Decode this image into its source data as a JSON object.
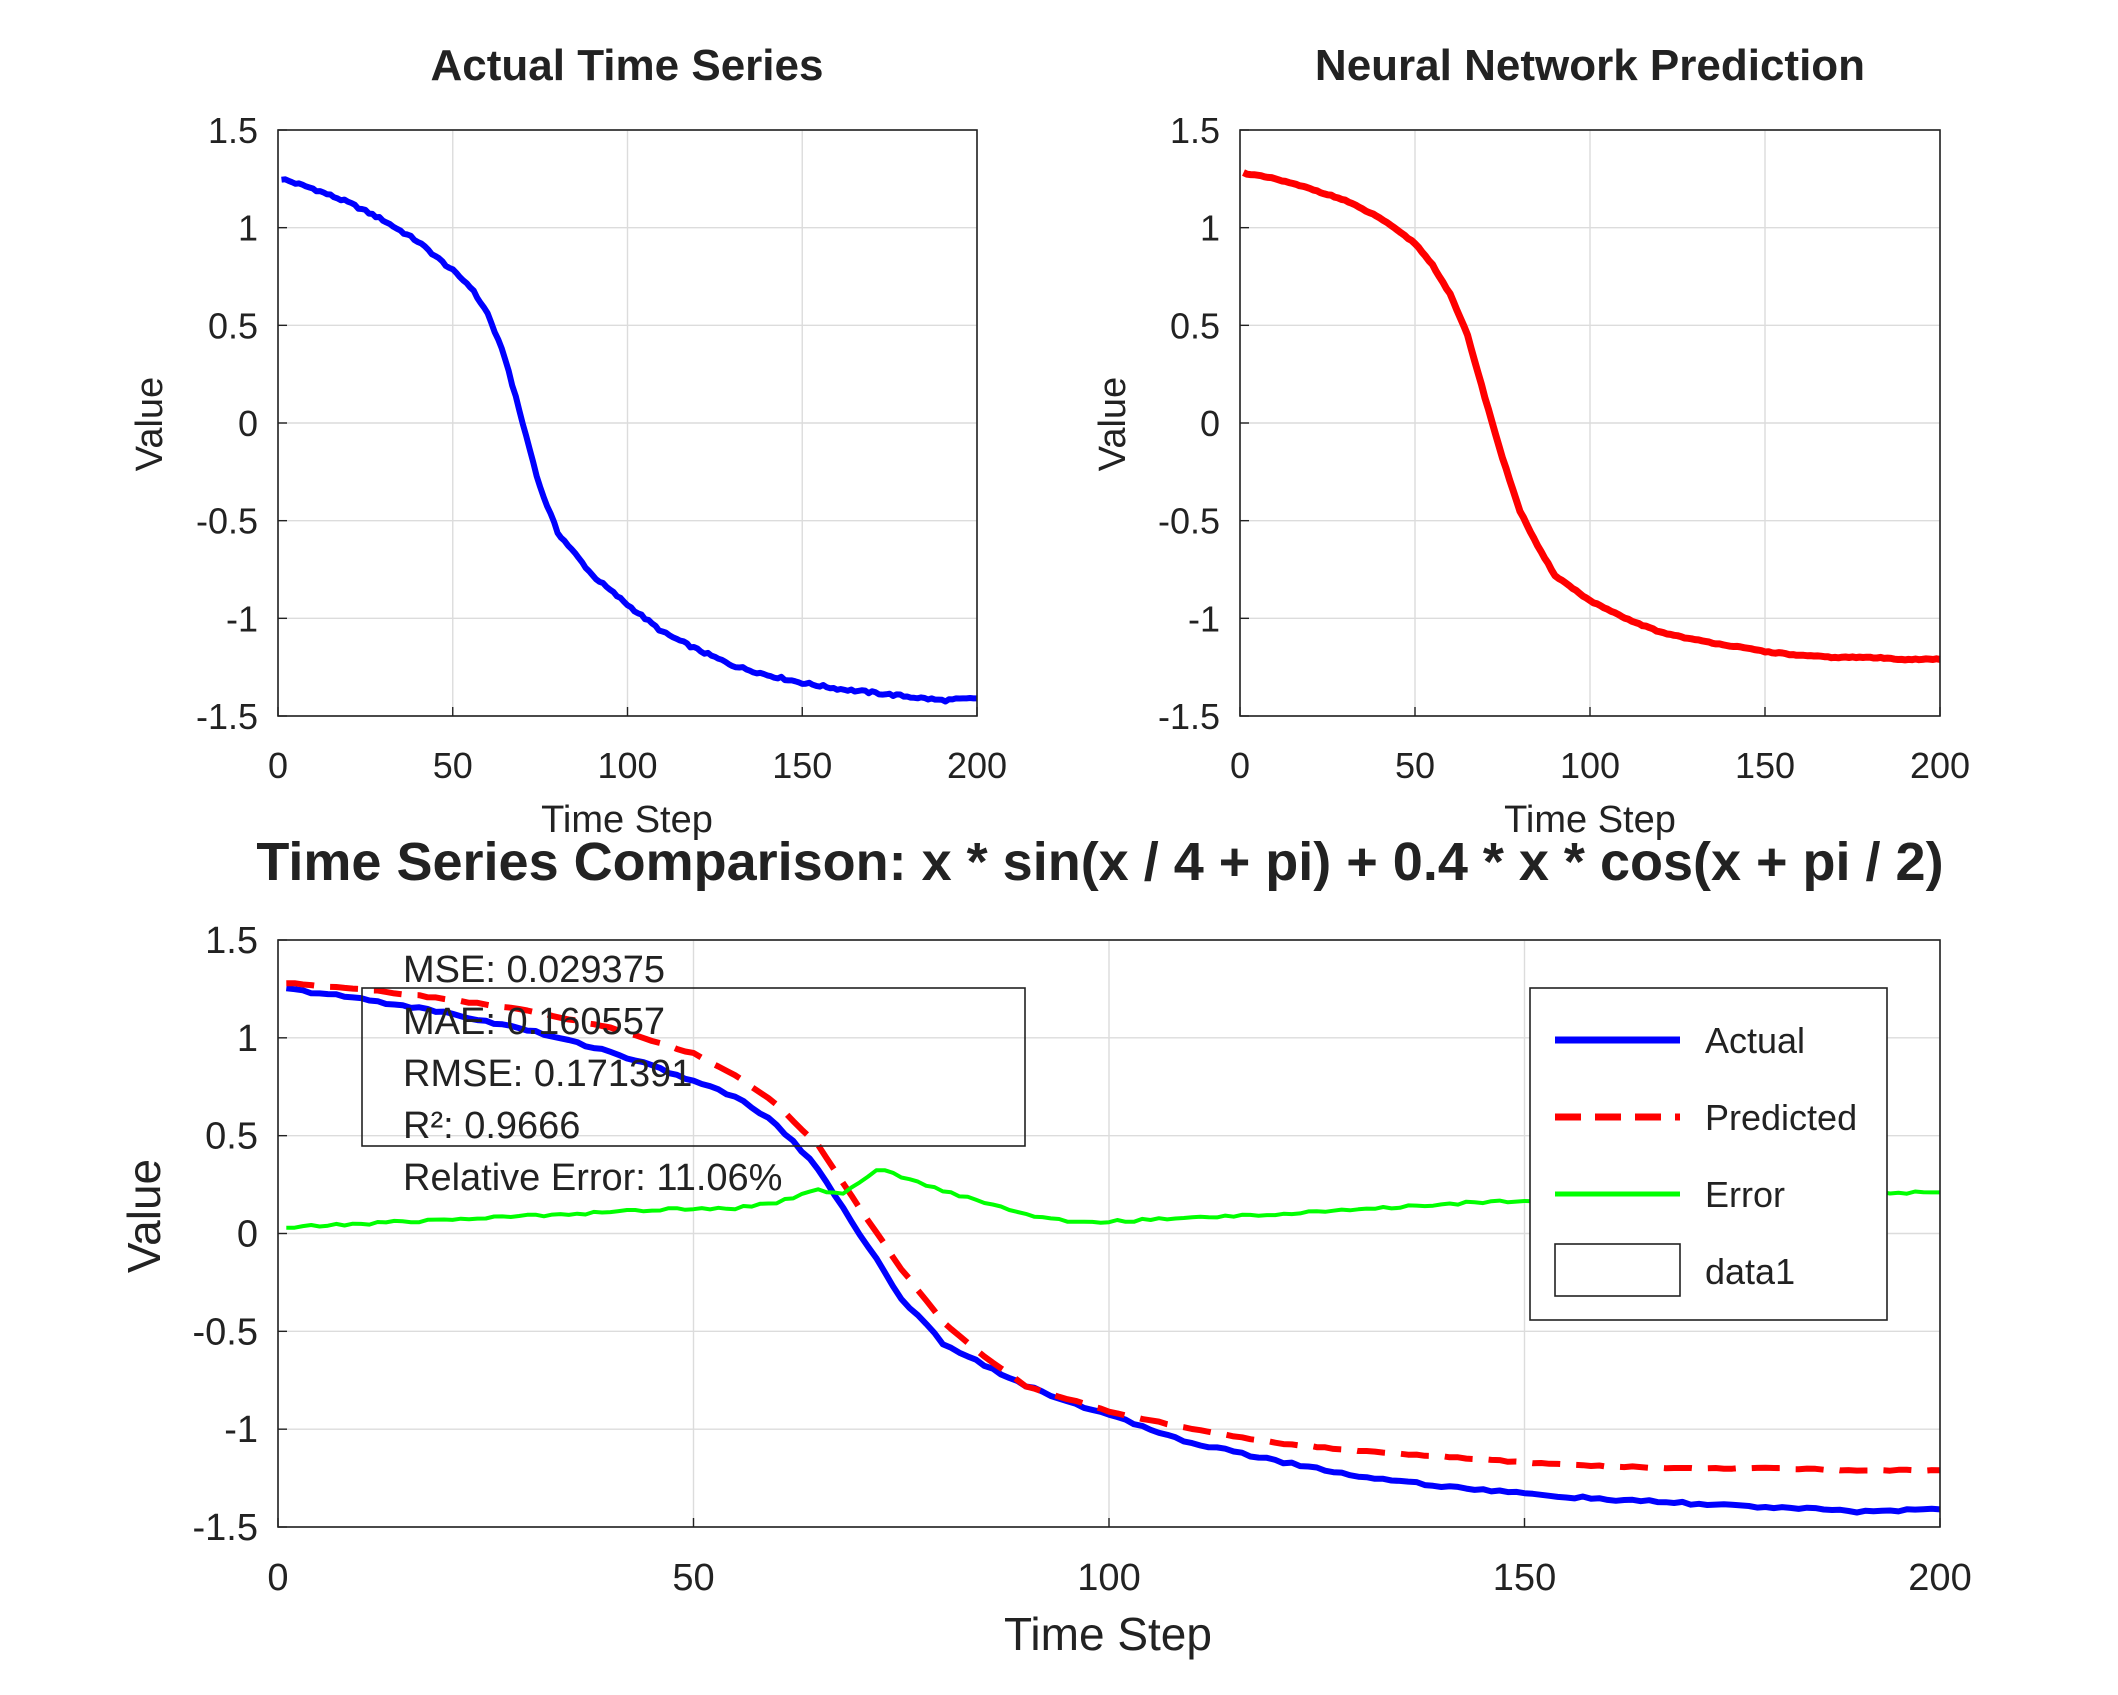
{
  "figure_title": "Time Series Comparison: x * sin(x / 4 + pi) + 0.4 * x * cos(x + pi / 2)",
  "chart_data": [
    {
      "type": "line",
      "title": "Actual Time Series",
      "xlabel": "Time Step",
      "ylabel": "Value",
      "xlim": [
        0,
        200
      ],
      "ylim": [
        -1.5,
        1.5
      ],
      "xticks": [
        0,
        50,
        100,
        150,
        200
      ],
      "yticks": [
        -1.5,
        -1,
        -0.5,
        0,
        0.5,
        1,
        1.5
      ],
      "grid": true,
      "series": [
        {
          "color": "#0000ff",
          "x": [
            1,
            10,
            20,
            30,
            40,
            50,
            55,
            60,
            65,
            70,
            75,
            80,
            90,
            100,
            110,
            120,
            130,
            140,
            150,
            160,
            170,
            180,
            190,
            200
          ],
          "y": [
            1.25,
            1.2,
            1.13,
            1.04,
            0.93,
            0.78,
            0.7,
            0.56,
            0.33,
            0.0,
            -0.33,
            -0.56,
            -0.78,
            -0.93,
            -1.07,
            -1.16,
            -1.24,
            -1.29,
            -1.33,
            -1.36,
            -1.38,
            -1.4,
            -1.42,
            -1.41
          ]
        }
      ]
    },
    {
      "type": "line",
      "title": "Neural Network Prediction",
      "xlabel": "Time Step",
      "ylabel": "Value",
      "xlim": [
        0,
        200
      ],
      "ylim": [
        -1.5,
        1.5
      ],
      "xticks": [
        0,
        50,
        100,
        150,
        200
      ],
      "yticks": [
        -1.5,
        -1,
        -0.5,
        0,
        0.5,
        1,
        1.5
      ],
      "grid": true,
      "series": [
        {
          "color": "#ff0000",
          "x": [
            1,
            10,
            20,
            30,
            40,
            50,
            55,
            60,
            65,
            70,
            75,
            80,
            85,
            90,
            100,
            110,
            120,
            130,
            140,
            150,
            160,
            170,
            180,
            190,
            200
          ],
          "y": [
            1.28,
            1.25,
            1.2,
            1.14,
            1.05,
            0.92,
            0.81,
            0.66,
            0.45,
            0.13,
            -0.18,
            -0.45,
            -0.63,
            -0.78,
            -0.91,
            -1.0,
            -1.07,
            -1.11,
            -1.14,
            -1.17,
            -1.19,
            -1.2,
            -1.2,
            -1.21,
            -1.21
          ]
        }
      ]
    },
    {
      "type": "line",
      "title": "Time Series Comparison: x * sin(x / 4 + pi) + 0.4 * x * cos(x + pi / 2)",
      "xlabel": "Time Step",
      "ylabel": "Value",
      "xlim": [
        0,
        200
      ],
      "ylim": [
        -1.5,
        1.5
      ],
      "xticks": [
        0,
        50,
        100,
        150,
        200
      ],
      "yticks": [
        -1.5,
        -1,
        -0.5,
        0,
        0.5,
        1,
        1.5
      ],
      "grid": true,
      "legend_position": "top-right",
      "series": [
        {
          "name": "Actual",
          "color": "#0000ff",
          "style": "solid",
          "x": [
            1,
            10,
            20,
            30,
            40,
            50,
            55,
            60,
            65,
            70,
            75,
            80,
            90,
            100,
            110,
            120,
            130,
            140,
            150,
            160,
            170,
            180,
            190,
            200
          ],
          "y": [
            1.25,
            1.2,
            1.13,
            1.04,
            0.93,
            0.78,
            0.7,
            0.56,
            0.33,
            0.0,
            -0.33,
            -0.56,
            -0.78,
            -0.93,
            -1.07,
            -1.16,
            -1.24,
            -1.29,
            -1.33,
            -1.36,
            -1.38,
            -1.4,
            -1.42,
            -1.41
          ]
        },
        {
          "name": "Predicted",
          "color": "#ff0000",
          "style": "dashed",
          "x": [
            1,
            10,
            20,
            30,
            40,
            50,
            55,
            60,
            65,
            70,
            75,
            80,
            85,
            90,
            100,
            110,
            120,
            130,
            140,
            150,
            160,
            170,
            180,
            190,
            200
          ],
          "y": [
            1.28,
            1.25,
            1.2,
            1.14,
            1.05,
            0.92,
            0.81,
            0.66,
            0.45,
            0.13,
            -0.18,
            -0.45,
            -0.63,
            -0.78,
            -0.91,
            -1.0,
            -1.07,
            -1.11,
            -1.14,
            -1.17,
            -1.19,
            -1.2,
            -1.2,
            -1.21,
            -1.21
          ]
        },
        {
          "name": "Error",
          "color": "#00ff00",
          "style": "solid",
          "x": [
            1,
            10,
            20,
            30,
            40,
            50,
            55,
            60,
            65,
            68,
            72,
            75,
            80,
            85,
            90,
            95,
            100,
            110,
            120,
            130,
            140,
            150,
            160,
            170,
            180,
            190,
            200
          ],
          "y": [
            0.03,
            0.05,
            0.07,
            0.09,
            0.11,
            0.13,
            0.13,
            0.16,
            0.22,
            0.2,
            0.33,
            0.29,
            0.22,
            0.16,
            0.1,
            0.06,
            0.06,
            0.08,
            0.1,
            0.12,
            0.15,
            0.17,
            0.18,
            0.19,
            0.2,
            0.21,
            0.21
          ]
        },
        {
          "name": "data1",
          "color": "#000000",
          "style": "empty"
        }
      ],
      "annotations": [
        "MSE: 0.029375",
        "MAE: 0.160557",
        "RMSE: 0.171391",
        "R²: 0.9666",
        "Relative Error: 11.06%"
      ]
    }
  ]
}
